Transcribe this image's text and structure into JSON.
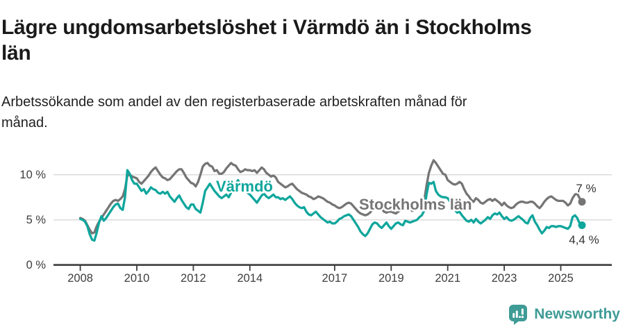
{
  "header": {
    "title": "Lägre ungdomsarbetslöshet i Värmdö än i Stockholms län",
    "title_lines": [
      "Lägre ungdomsarbetslöshet i Värmdö än i Stockholms",
      "län"
    ],
    "subtitle": "Arbetssökande som andel av den registerbaserade arbetskraften månad för månad.",
    "subtitle_lines": [
      "Arbetssökande som andel av den registerbaserade arbetskraften månad för",
      "månad."
    ]
  },
  "footer": {
    "brand": "Newsworthy"
  },
  "colors": {
    "varmdo": "#0FA69C",
    "stockholm": "#757575",
    "grid": "#DBDBDB",
    "axis": "#3D3D3D",
    "tick_text": "#3D3D3D",
    "end_label_text": "#333333",
    "brand_teal": "#3E9B96"
  },
  "chart_data": {
    "type": "line",
    "title": "Lägre ungdomsarbetslöshet i Värmdö än i Stockholms län",
    "unit": "%",
    "frequency": "monthly",
    "x_start": "2008-01",
    "x_end": "2025-10",
    "grid": "horizontal-only",
    "legend_position": "inline-labels",
    "ylim": [
      0,
      12
    ],
    "y_ticks": [
      {
        "value": 0,
        "label": "0 %"
      },
      {
        "value": 5,
        "label": "5 %"
      },
      {
        "value": 10,
        "label": "10 %"
      }
    ],
    "x_tick_years": [
      2008,
      2010,
      2012,
      2014,
      2017,
      2019,
      2021,
      2023,
      2025
    ],
    "x_tick_labels": [
      "2008",
      "2010",
      "2012",
      "2014",
      "2017",
      "2019",
      "2021",
      "2023",
      "2025"
    ],
    "series": [
      {
        "name": "Stockholms län",
        "color": "#757575",
        "end_label": "7 %",
        "values": [
          5.2,
          5.1,
          4.9,
          4.4,
          3.9,
          3.5,
          3.6,
          4.3,
          4.8,
          5.2,
          5.6,
          6.0,
          6.4,
          6.8,
          7.1,
          7.2,
          7.1,
          7.3,
          7.6,
          8.4,
          9.9,
          10.0,
          9.8,
          9.7,
          9.6,
          9.2,
          9.0,
          9.3,
          9.6,
          9.9,
          10.3,
          10.6,
          10.8,
          10.4,
          10.0,
          9.7,
          9.6,
          9.4,
          9.5,
          9.8,
          10.1,
          10.4,
          10.6,
          10.6,
          10.2,
          9.7,
          9.4,
          9.1,
          9.0,
          8.7,
          9.2,
          10.0,
          10.9,
          11.2,
          11.3,
          11.0,
          10.9,
          10.4,
          10.5,
          10.1,
          10.1,
          10.3,
          10.7,
          11.0,
          11.3,
          11.1,
          11.0,
          10.6,
          10.3,
          10.4,
          10.6,
          10.5,
          10.5,
          10.4,
          10.5,
          10.2,
          10.5,
          10.8,
          10.6,
          10.2,
          10.0,
          9.8,
          9.9,
          9.7,
          9.2,
          9.0,
          8.8,
          8.6,
          8.7,
          8.9,
          9.0,
          8.7,
          8.4,
          8.2,
          8.0,
          7.9,
          7.8,
          7.6,
          7.5,
          7.3,
          7.4,
          7.6,
          7.5,
          7.4,
          7.2,
          7.0,
          6.9,
          6.7,
          6.6,
          6.4,
          6.3,
          6.4,
          6.6,
          6.8,
          6.9,
          6.8,
          6.5,
          6.2,
          5.9,
          5.7,
          5.6,
          5.5,
          5.6,
          5.8,
          6.1,
          6.4,
          6.6,
          6.5,
          6.2,
          5.9,
          5.8,
          5.9,
          5.9,
          5.8,
          5.7,
          5.9,
          6.1,
          6.4,
          6.5,
          6.3,
          6.1,
          6.0,
          6.1,
          6.2,
          6.3,
          6.4,
          7.1,
          8.8,
          10.2,
          11.0,
          11.6,
          11.3,
          10.9,
          10.5,
          10.1,
          10.0,
          9.4,
          9.2,
          9.0,
          8.9,
          9.0,
          9.2,
          9.0,
          8.4,
          7.9,
          7.6,
          7.2,
          7.0,
          7.4,
          7.2,
          6.9,
          6.8,
          7.0,
          7.2,
          7.3,
          7.1,
          7.3,
          7.1,
          6.9,
          6.6,
          6.9,
          6.6,
          6.4,
          6.3,
          6.4,
          6.7,
          6.9,
          7.0,
          7.0,
          6.9,
          6.9,
          7.0,
          7.0,
          6.8,
          6.5,
          6.3,
          6.6,
          7.0,
          7.3,
          7.5,
          7.6,
          7.4,
          7.2,
          7.1,
          7.1,
          7.1,
          6.9,
          6.6,
          6.8,
          7.4,
          7.8,
          7.9,
          7.4,
          7.0
        ]
      },
      {
        "name": "Värmdö",
        "color": "#0FA69C",
        "end_label": "4,4 %",
        "values": [
          5.1,
          5.0,
          4.8,
          4.3,
          3.4,
          2.8,
          2.7,
          3.6,
          4.7,
          5.4,
          4.9,
          5.2,
          5.6,
          6.0,
          6.4,
          6.7,
          6.8,
          6.3,
          6.1,
          7.5,
          10.5,
          10.1,
          9.4,
          9.0,
          9.0,
          8.6,
          8.2,
          8.4,
          7.9,
          8.2,
          8.6,
          8.4,
          8.3,
          8.0,
          7.9,
          8.1,
          7.9,
          8.1,
          7.6,
          7.3,
          7.0,
          7.4,
          7.7,
          7.2,
          6.8,
          6.4,
          6.2,
          6.7,
          6.7,
          6.2,
          6.0,
          5.8,
          6.9,
          8.2,
          8.6,
          9.0,
          8.6,
          8.2,
          7.9,
          7.6,
          7.4,
          7.6,
          7.8,
          7.5,
          8.0,
          8.6,
          9.0,
          9.4,
          8.8,
          8.4,
          8.2,
          8.0,
          7.8,
          7.5,
          7.2,
          6.9,
          7.3,
          7.7,
          7.9,
          7.6,
          7.4,
          7.6,
          7.8,
          7.5,
          7.5,
          7.3,
          7.4,
          7.2,
          7.4,
          7.6,
          7.3,
          6.9,
          6.6,
          6.4,
          6.3,
          6.4,
          5.9,
          5.6,
          5.5,
          5.7,
          5.9,
          5.6,
          5.3,
          5.1,
          4.9,
          4.7,
          4.8,
          4.6,
          4.6,
          4.8,
          5.1,
          5.2,
          5.4,
          5.5,
          5.6,
          5.4,
          5.0,
          4.6,
          4.2,
          3.7,
          3.4,
          3.2,
          3.5,
          4.0,
          4.5,
          4.7,
          4.6,
          4.3,
          4.1,
          4.4,
          4.7,
          4.3,
          4.0,
          4.3,
          4.6,
          4.7,
          4.5,
          4.4,
          4.9,
          4.8,
          4.7,
          4.8,
          4.9,
          5.0,
          5.3,
          5.5,
          6.0,
          7.8,
          9.1,
          9.0,
          9.2,
          8.2,
          7.8,
          7.6,
          7.5,
          7.5,
          7.4,
          7.0,
          6.5,
          6.1,
          5.8,
          5.9,
          5.5,
          5.2,
          4.9,
          4.8,
          5.0,
          4.7,
          5.1,
          4.8,
          4.6,
          4.8,
          5.0,
          5.3,
          5.1,
          5.5,
          5.7,
          5.6,
          5.8,
          5.4,
          5.1,
          5.3,
          5.0,
          4.9,
          5.0,
          5.2,
          5.4,
          5.2,
          5.0,
          4.7,
          4.6,
          5.2,
          5.5,
          4.8,
          4.4,
          3.9,
          3.5,
          3.8,
          4.2,
          4.1,
          4.3,
          4.3,
          4.2,
          4.3,
          4.3,
          4.2,
          4.1,
          4.0,
          4.3,
          5.3,
          5.5,
          5.2,
          4.6,
          4.4
        ]
      }
    ]
  }
}
